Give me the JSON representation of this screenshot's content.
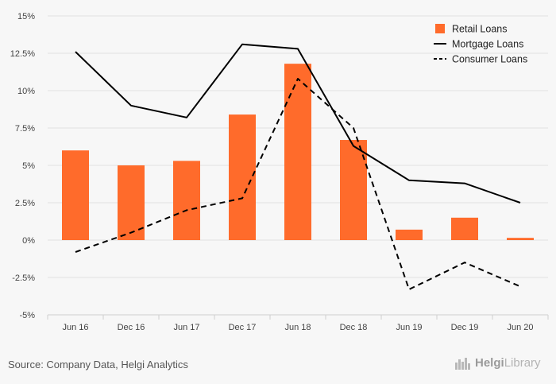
{
  "chart_data": {
    "type": "bar",
    "categories": [
      "Jun 16",
      "Dec 16",
      "Jun 17",
      "Dec 17",
      "Jun 18",
      "Dec 18",
      "Jun 19",
      "Dec 19",
      "Jun 20"
    ],
    "series": [
      {
        "name": "Retail Loans",
        "type": "bar",
        "color": "#ff6b2b",
        "style": "solid",
        "values": [
          6.0,
          5.0,
          5.3,
          8.4,
          11.8,
          6.7,
          0.7,
          1.5,
          0.15
        ]
      },
      {
        "name": "Mortgage Loans",
        "type": "line",
        "color": "#000000",
        "style": "solid",
        "values": [
          12.6,
          9.0,
          8.2,
          13.1,
          12.8,
          6.3,
          4.0,
          3.8,
          2.5
        ]
      },
      {
        "name": "Consumer Loans",
        "type": "line",
        "color": "#000000",
        "style": "dashed",
        "values": [
          -0.8,
          0.5,
          2.0,
          2.8,
          10.8,
          7.5,
          -3.3,
          -1.5,
          -3.1
        ]
      }
    ],
    "yticks": [
      "15%",
      "12.5%",
      "10%",
      "7.5%",
      "5%",
      "2.5%",
      "0%",
      "-2.5%",
      "-5%"
    ],
    "ylim": [
      -5,
      15
    ],
    "legend_position": "top-right",
    "grid": true
  },
  "source": "Source: Company Data, Helgi Analytics",
  "brand": {
    "name_bold": "Helgi",
    "name_light": "Library",
    "icon": "skyline-icon"
  }
}
